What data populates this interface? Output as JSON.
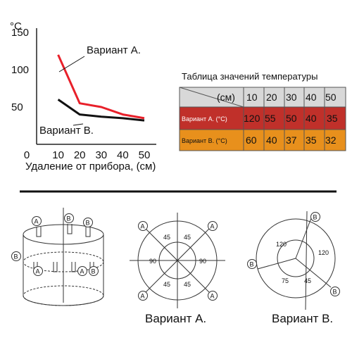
{
  "chart_data": {
    "type": "line",
    "x": [
      10,
      20,
      30,
      40,
      50
    ],
    "xlim": [
      0,
      50
    ],
    "ylim": [
      0,
      150
    ],
    "x_ticks": [
      "0",
      "10",
      "20",
      "30",
      "40",
      "50"
    ],
    "y_ticks": [
      "50",
      "100",
      "150"
    ],
    "y_unit": "°C",
    "xlabel": "Удаление от прибора, (см)",
    "series": [
      {
        "name": "Вариант А.",
        "color": "#e8202a",
        "values": [
          120,
          55,
          50,
          40,
          35
        ]
      },
      {
        "name": "Вариант В.",
        "color": "#111111",
        "values": [
          60,
          40,
          37,
          35,
          32
        ]
      }
    ]
  },
  "table": {
    "title": "Таблица значений температуры",
    "header_unit": "(см)",
    "columns": [
      "10",
      "20",
      "30",
      "40",
      "50"
    ],
    "rows": [
      {
        "label": "Вариант А. (°C)",
        "color": "#c0302a",
        "values": [
          "120",
          "55",
          "50",
          "40",
          "35"
        ]
      },
      {
        "label": "Вариант В. (°C)",
        "color": "#e8901c",
        "values": [
          "60",
          "40",
          "37",
          "35",
          "32"
        ]
      }
    ]
  },
  "diagrams": {
    "a_label": "A",
    "b_label": "B",
    "variant_a": {
      "caption": "Вариант А.",
      "angles": {
        "tl": "45",
        "tr": "45",
        "left": "90",
        "right": "90",
        "bl": "45",
        "br": "45"
      }
    },
    "variant_b": {
      "caption": "Вариант В.",
      "angles": {
        "top_left": "120",
        "right": "120",
        "bottom_left": "75",
        "bottom_right": "45"
      }
    }
  },
  "colors": {
    "divider": "#111111",
    "table_header": "#d8d8d8",
    "grid": "#444444"
  }
}
